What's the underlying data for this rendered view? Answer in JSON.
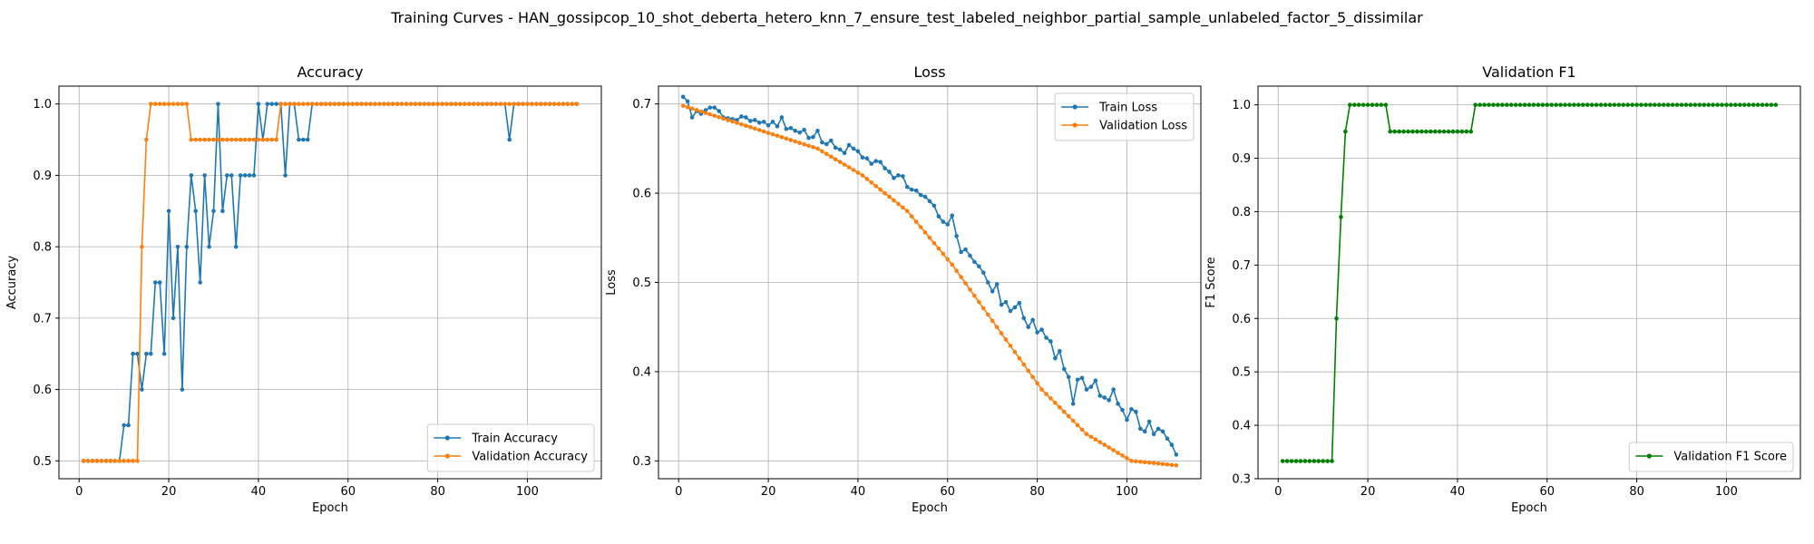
{
  "figure": {
    "title": "Training Curves - HAN_gossipcop_10_shot_deberta_hetero_knn_7_ensure_test_labeled_neighbor_partial_sample_unlabeled_factor_5_dissimilar"
  },
  "chart_data": [
    {
      "type": "line",
      "title": "Accuracy",
      "xlabel": "Epoch",
      "ylabel": "Accuracy",
      "xlim": [
        -4.5,
        116.5
      ],
      "ylim": [
        0.475,
        1.025
      ],
      "xticks": [
        0,
        20,
        40,
        60,
        80,
        100
      ],
      "yticks": [
        0.5,
        0.6,
        0.7,
        0.8,
        0.9,
        1.0
      ],
      "ytick_decimals": 1,
      "grid": true,
      "legend": "lower-right",
      "series": [
        {
          "name": "Train Accuracy",
          "color": "#1f77b4",
          "x_start": 1,
          "values": [
            0.5,
            0.5,
            0.5,
            0.5,
            0.5,
            0.5,
            0.5,
            0.5,
            0.5,
            0.55,
            0.55,
            0.65,
            0.65,
            0.6,
            0.65,
            0.65,
            0.75,
            0.75,
            0.65,
            0.85,
            0.7,
            0.8,
            0.6,
            0.8,
            0.9,
            0.85,
            0.75,
            0.9,
            0.8,
            0.85,
            1.0,
            0.85,
            0.9,
            0.9,
            0.8,
            0.9,
            0.9,
            0.9,
            0.9,
            1.0,
            0.95,
            1.0,
            1.0,
            1.0,
            1.0,
            0.9,
            1.0,
            1.0,
            0.95,
            0.95,
            0.95,
            1.0,
            1.0,
            1.0,
            1.0,
            1.0,
            1.0,
            1.0,
            1.0,
            1.0,
            1.0,
            1.0,
            1.0,
            1.0,
            1.0,
            1.0,
            1.0,
            1.0,
            1.0,
            1.0,
            1.0,
            1.0,
            1.0,
            1.0,
            1.0,
            1.0,
            1.0,
            1.0,
            1.0,
            1.0,
            1.0,
            1.0,
            1.0,
            1.0,
            1.0,
            1.0,
            1.0,
            1.0,
            1.0,
            1.0,
            1.0,
            1.0,
            1.0,
            1.0,
            1.0,
            0.95,
            1.0,
            1.0,
            1.0,
            1.0,
            1.0,
            1.0,
            1.0,
            1.0,
            1.0,
            1.0,
            1.0,
            1.0,
            1.0,
            1.0,
            1.0
          ]
        },
        {
          "name": "Validation Accuracy",
          "color": "#ff7f0e",
          "x_start": 1,
          "values": [
            0.5,
            0.5,
            0.5,
            0.5,
            0.5,
            0.5,
            0.5,
            0.5,
            0.5,
            0.5,
            0.5,
            0.5,
            0.5,
            0.8,
            0.95,
            1.0,
            1.0,
            1.0,
            1.0,
            1.0,
            1.0,
            1.0,
            1.0,
            1.0,
            0.95,
            0.95,
            0.95,
            0.95,
            0.95,
            0.95,
            0.95,
            0.95,
            0.95,
            0.95,
            0.95,
            0.95,
            0.95,
            0.95,
            0.95,
            0.95,
            0.95,
            0.95,
            0.95,
            0.95,
            1.0,
            1.0,
            1.0,
            1.0,
            1.0,
            1.0,
            1.0,
            1.0,
            1.0,
            1.0,
            1.0,
            1.0,
            1.0,
            1.0,
            1.0,
            1.0,
            1.0,
            1.0,
            1.0,
            1.0,
            1.0,
            1.0,
            1.0,
            1.0,
            1.0,
            1.0,
            1.0,
            1.0,
            1.0,
            1.0,
            1.0,
            1.0,
            1.0,
            1.0,
            1.0,
            1.0,
            1.0,
            1.0,
            1.0,
            1.0,
            1.0,
            1.0,
            1.0,
            1.0,
            1.0,
            1.0,
            1.0,
            1.0,
            1.0,
            1.0,
            1.0,
            1.0,
            1.0,
            1.0,
            1.0,
            1.0,
            1.0,
            1.0,
            1.0,
            1.0,
            1.0,
            1.0,
            1.0,
            1.0,
            1.0,
            1.0,
            1.0
          ]
        }
      ]
    },
    {
      "type": "line",
      "title": "Loss",
      "xlabel": "Epoch",
      "ylabel": "Loss",
      "xlim": [
        -4.5,
        116.5
      ],
      "ylim": [
        0.28,
        0.72
      ],
      "xticks": [
        0,
        20,
        40,
        60,
        80,
        100
      ],
      "yticks": [
        0.3,
        0.4,
        0.5,
        0.6,
        0.7
      ],
      "ytick_decimals": 1,
      "grid": true,
      "legend": "upper-right",
      "series": [
        {
          "name": "Train Loss",
          "color": "#1f77b4",
          "x_start": 1,
          "values": [
            0.708,
            0.703,
            0.685,
            0.692,
            0.689,
            0.693,
            0.696,
            0.696,
            0.692,
            0.685,
            0.684,
            0.683,
            0.682,
            0.686,
            0.685,
            0.681,
            0.682,
            0.679,
            0.68,
            0.676,
            0.68,
            0.675,
            0.685,
            0.672,
            0.673,
            0.67,
            0.668,
            0.671,
            0.662,
            0.663,
            0.67,
            0.657,
            0.655,
            0.659,
            0.651,
            0.649,
            0.645,
            0.654,
            0.65,
            0.647,
            0.64,
            0.639,
            0.633,
            0.636,
            0.635,
            0.628,
            0.624,
            0.617,
            0.62,
            0.619,
            0.607,
            0.604,
            0.603,
            0.598,
            0.596,
            0.591,
            0.586,
            0.574,
            0.568,
            0.565,
            0.575,
            0.552,
            0.534,
            0.537,
            0.53,
            0.523,
            0.518,
            0.511,
            0.5,
            0.49,
            0.498,
            0.475,
            0.478,
            0.468,
            0.472,
            0.477,
            0.46,
            0.45,
            0.458,
            0.444,
            0.447,
            0.438,
            0.434,
            0.415,
            0.423,
            0.403,
            0.394,
            0.364,
            0.391,
            0.393,
            0.38,
            0.383,
            0.39,
            0.373,
            0.371,
            0.368,
            0.38,
            0.364,
            0.357,
            0.346,
            0.358,
            0.355,
            0.336,
            0.333,
            0.344,
            0.33,
            0.336,
            0.333,
            0.325,
            0.318,
            0.307
          ]
        },
        {
          "name": "Validation Loss",
          "color": "#ff7f0e",
          "x_start": 1,
          "values": [
            0.698,
            0.6964,
            0.6948,
            0.6932,
            0.6916,
            0.69,
            0.6884,
            0.6868,
            0.6852,
            0.6836,
            0.682,
            0.6804,
            0.6788,
            0.6772,
            0.6756,
            0.674,
            0.6724,
            0.6708,
            0.6692,
            0.6676,
            0.666,
            0.6644,
            0.6628,
            0.6612,
            0.6596,
            0.658,
            0.6564,
            0.6548,
            0.6532,
            0.6516,
            0.65,
            0.647,
            0.644,
            0.641,
            0.638,
            0.635,
            0.632,
            0.629,
            0.626,
            0.623,
            0.62,
            0.616,
            0.612,
            0.608,
            0.604,
            0.6,
            0.596,
            0.592,
            0.588,
            0.584,
            0.58,
            0.574,
            0.568,
            0.562,
            0.556,
            0.55,
            0.544,
            0.538,
            0.532,
            0.526,
            0.52,
            0.513,
            0.506,
            0.499,
            0.492,
            0.485,
            0.478,
            0.471,
            0.464,
            0.457,
            0.45,
            0.443,
            0.436,
            0.429,
            0.422,
            0.415,
            0.408,
            0.401,
            0.394,
            0.387,
            0.38,
            0.375,
            0.37,
            0.365,
            0.36,
            0.355,
            0.35,
            0.345,
            0.34,
            0.335,
            0.33,
            0.327,
            0.324,
            0.321,
            0.318,
            0.315,
            0.312,
            0.309,
            0.306,
            0.303,
            0.3,
            0.2995,
            0.299,
            0.2985,
            0.298,
            0.2975,
            0.297,
            0.2965,
            0.296,
            0.2955,
            0.295
          ]
        }
      ]
    },
    {
      "type": "line",
      "title": "Validation F1",
      "xlabel": "Epoch",
      "ylabel": "F1 Score",
      "xlim": [
        -4.5,
        116.5
      ],
      "ylim": [
        0.3,
        1.035
      ],
      "xticks": [
        0,
        20,
        40,
        60,
        80,
        100
      ],
      "yticks": [
        0.3,
        0.4,
        0.5,
        0.6,
        0.7,
        0.8,
        0.9,
        1.0
      ],
      "ytick_decimals": 1,
      "grid": true,
      "legend": "lower-right",
      "series": [
        {
          "name": "Validation F1 Score",
          "color": "#008000",
          "x_start": 1,
          "values": [
            0.333,
            0.333,
            0.333,
            0.333,
            0.333,
            0.333,
            0.333,
            0.333,
            0.333,
            0.333,
            0.333,
            0.333,
            0.6,
            0.79,
            0.95,
            1.0,
            1.0,
            1.0,
            1.0,
            1.0,
            1.0,
            1.0,
            1.0,
            1.0,
            0.95,
            0.95,
            0.95,
            0.95,
            0.95,
            0.95,
            0.95,
            0.95,
            0.95,
            0.95,
            0.95,
            0.95,
            0.95,
            0.95,
            0.95,
            0.95,
            0.95,
            0.95,
            0.95,
            1.0,
            1.0,
            1.0,
            1.0,
            1.0,
            1.0,
            1.0,
            1.0,
            1.0,
            1.0,
            1.0,
            1.0,
            1.0,
            1.0,
            1.0,
            1.0,
            1.0,
            1.0,
            1.0,
            1.0,
            1.0,
            1.0,
            1.0,
            1.0,
            1.0,
            1.0,
            1.0,
            1.0,
            1.0,
            1.0,
            1.0,
            1.0,
            1.0,
            1.0,
            1.0,
            1.0,
            1.0,
            1.0,
            1.0,
            1.0,
            1.0,
            1.0,
            1.0,
            1.0,
            1.0,
            1.0,
            1.0,
            1.0,
            1.0,
            1.0,
            1.0,
            1.0,
            1.0,
            1.0,
            1.0,
            1.0,
            1.0,
            1.0,
            1.0,
            1.0,
            1.0,
            1.0,
            1.0,
            1.0,
            1.0,
            1.0,
            1.0,
            1.0
          ]
        }
      ]
    }
  ]
}
